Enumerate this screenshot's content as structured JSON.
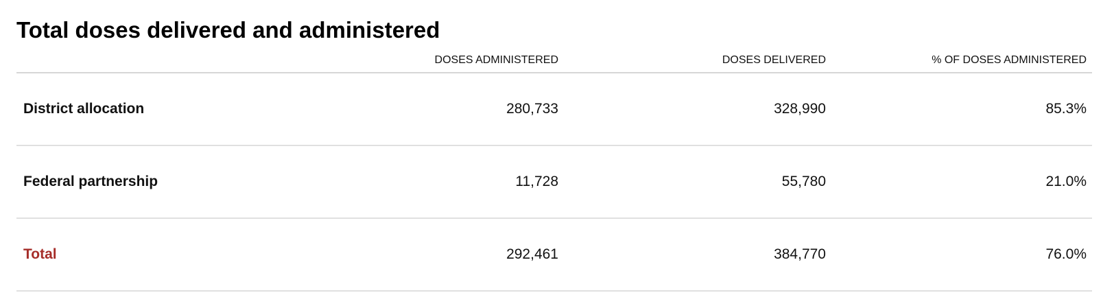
{
  "chart_data": {
    "type": "table",
    "title": "Total doses delivered and administered",
    "columns": [
      "",
      "DOSES ADMINISTERED",
      "DOSES DELIVERED",
      "% OF DOSES ADMINISTERED"
    ],
    "rows": [
      {
        "label": "District allocation",
        "doses_administered": "280,733",
        "doses_delivered": "328,990",
        "pct_administered": "85.3%"
      },
      {
        "label": "Federal partnership",
        "doses_administered": "11,728",
        "doses_delivered": "55,780",
        "pct_administered": "21.0%"
      },
      {
        "label": "Total",
        "doses_administered": "292,461",
        "doses_delivered": "384,770",
        "pct_administered": "76.0%"
      }
    ],
    "colors": {
      "total_label": "#a62e2a",
      "footnote_link": "#b02a25"
    }
  }
}
